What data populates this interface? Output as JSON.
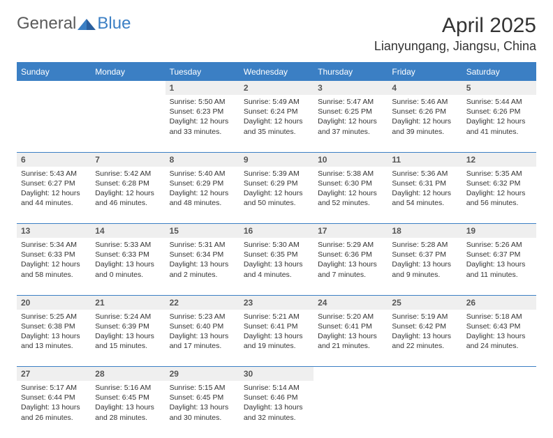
{
  "brand": {
    "part1": "General",
    "part2": "Blue"
  },
  "title": "April 2025",
  "location": "Lianyungang, Jiangsu, China",
  "colors": {
    "accent": "#3b7fc4",
    "header_bg": "#3b7fc4",
    "daynum_bg": "#efefef",
    "text": "#333333"
  },
  "weekdays": [
    "Sunday",
    "Monday",
    "Tuesday",
    "Wednesday",
    "Thursday",
    "Friday",
    "Saturday"
  ],
  "weeks": [
    [
      {
        "empty": true
      },
      {
        "empty": true
      },
      {
        "n": "1",
        "sunrise": "Sunrise: 5:50 AM",
        "sunset": "Sunset: 6:23 PM",
        "day1": "Daylight: 12 hours",
        "day2": "and 33 minutes."
      },
      {
        "n": "2",
        "sunrise": "Sunrise: 5:49 AM",
        "sunset": "Sunset: 6:24 PM",
        "day1": "Daylight: 12 hours",
        "day2": "and 35 minutes."
      },
      {
        "n": "3",
        "sunrise": "Sunrise: 5:47 AM",
        "sunset": "Sunset: 6:25 PM",
        "day1": "Daylight: 12 hours",
        "day2": "and 37 minutes."
      },
      {
        "n": "4",
        "sunrise": "Sunrise: 5:46 AM",
        "sunset": "Sunset: 6:26 PM",
        "day1": "Daylight: 12 hours",
        "day2": "and 39 minutes."
      },
      {
        "n": "5",
        "sunrise": "Sunrise: 5:44 AM",
        "sunset": "Sunset: 6:26 PM",
        "day1": "Daylight: 12 hours",
        "day2": "and 41 minutes."
      }
    ],
    [
      {
        "n": "6",
        "sunrise": "Sunrise: 5:43 AM",
        "sunset": "Sunset: 6:27 PM",
        "day1": "Daylight: 12 hours",
        "day2": "and 44 minutes."
      },
      {
        "n": "7",
        "sunrise": "Sunrise: 5:42 AM",
        "sunset": "Sunset: 6:28 PM",
        "day1": "Daylight: 12 hours",
        "day2": "and 46 minutes."
      },
      {
        "n": "8",
        "sunrise": "Sunrise: 5:40 AM",
        "sunset": "Sunset: 6:29 PM",
        "day1": "Daylight: 12 hours",
        "day2": "and 48 minutes."
      },
      {
        "n": "9",
        "sunrise": "Sunrise: 5:39 AM",
        "sunset": "Sunset: 6:29 PM",
        "day1": "Daylight: 12 hours",
        "day2": "and 50 minutes."
      },
      {
        "n": "10",
        "sunrise": "Sunrise: 5:38 AM",
        "sunset": "Sunset: 6:30 PM",
        "day1": "Daylight: 12 hours",
        "day2": "and 52 minutes."
      },
      {
        "n": "11",
        "sunrise": "Sunrise: 5:36 AM",
        "sunset": "Sunset: 6:31 PM",
        "day1": "Daylight: 12 hours",
        "day2": "and 54 minutes."
      },
      {
        "n": "12",
        "sunrise": "Sunrise: 5:35 AM",
        "sunset": "Sunset: 6:32 PM",
        "day1": "Daylight: 12 hours",
        "day2": "and 56 minutes."
      }
    ],
    [
      {
        "n": "13",
        "sunrise": "Sunrise: 5:34 AM",
        "sunset": "Sunset: 6:33 PM",
        "day1": "Daylight: 12 hours",
        "day2": "and 58 minutes."
      },
      {
        "n": "14",
        "sunrise": "Sunrise: 5:33 AM",
        "sunset": "Sunset: 6:33 PM",
        "day1": "Daylight: 13 hours",
        "day2": "and 0 minutes."
      },
      {
        "n": "15",
        "sunrise": "Sunrise: 5:31 AM",
        "sunset": "Sunset: 6:34 PM",
        "day1": "Daylight: 13 hours",
        "day2": "and 2 minutes."
      },
      {
        "n": "16",
        "sunrise": "Sunrise: 5:30 AM",
        "sunset": "Sunset: 6:35 PM",
        "day1": "Daylight: 13 hours",
        "day2": "and 4 minutes."
      },
      {
        "n": "17",
        "sunrise": "Sunrise: 5:29 AM",
        "sunset": "Sunset: 6:36 PM",
        "day1": "Daylight: 13 hours",
        "day2": "and 7 minutes."
      },
      {
        "n": "18",
        "sunrise": "Sunrise: 5:28 AM",
        "sunset": "Sunset: 6:37 PM",
        "day1": "Daylight: 13 hours",
        "day2": "and 9 minutes."
      },
      {
        "n": "19",
        "sunrise": "Sunrise: 5:26 AM",
        "sunset": "Sunset: 6:37 PM",
        "day1": "Daylight: 13 hours",
        "day2": "and 11 minutes."
      }
    ],
    [
      {
        "n": "20",
        "sunrise": "Sunrise: 5:25 AM",
        "sunset": "Sunset: 6:38 PM",
        "day1": "Daylight: 13 hours",
        "day2": "and 13 minutes."
      },
      {
        "n": "21",
        "sunrise": "Sunrise: 5:24 AM",
        "sunset": "Sunset: 6:39 PM",
        "day1": "Daylight: 13 hours",
        "day2": "and 15 minutes."
      },
      {
        "n": "22",
        "sunrise": "Sunrise: 5:23 AM",
        "sunset": "Sunset: 6:40 PM",
        "day1": "Daylight: 13 hours",
        "day2": "and 17 minutes."
      },
      {
        "n": "23",
        "sunrise": "Sunrise: 5:21 AM",
        "sunset": "Sunset: 6:41 PM",
        "day1": "Daylight: 13 hours",
        "day2": "and 19 minutes."
      },
      {
        "n": "24",
        "sunrise": "Sunrise: 5:20 AM",
        "sunset": "Sunset: 6:41 PM",
        "day1": "Daylight: 13 hours",
        "day2": "and 21 minutes."
      },
      {
        "n": "25",
        "sunrise": "Sunrise: 5:19 AM",
        "sunset": "Sunset: 6:42 PM",
        "day1": "Daylight: 13 hours",
        "day2": "and 22 minutes."
      },
      {
        "n": "26",
        "sunrise": "Sunrise: 5:18 AM",
        "sunset": "Sunset: 6:43 PM",
        "day1": "Daylight: 13 hours",
        "day2": "and 24 minutes."
      }
    ],
    [
      {
        "n": "27",
        "sunrise": "Sunrise: 5:17 AM",
        "sunset": "Sunset: 6:44 PM",
        "day1": "Daylight: 13 hours",
        "day2": "and 26 minutes."
      },
      {
        "n": "28",
        "sunrise": "Sunrise: 5:16 AM",
        "sunset": "Sunset: 6:45 PM",
        "day1": "Daylight: 13 hours",
        "day2": "and 28 minutes."
      },
      {
        "n": "29",
        "sunrise": "Sunrise: 5:15 AM",
        "sunset": "Sunset: 6:45 PM",
        "day1": "Daylight: 13 hours",
        "day2": "and 30 minutes."
      },
      {
        "n": "30",
        "sunrise": "Sunrise: 5:14 AM",
        "sunset": "Sunset: 6:46 PM",
        "day1": "Daylight: 13 hours",
        "day2": "and 32 minutes."
      },
      {
        "empty": true
      },
      {
        "empty": true
      },
      {
        "empty": true
      }
    ]
  ]
}
